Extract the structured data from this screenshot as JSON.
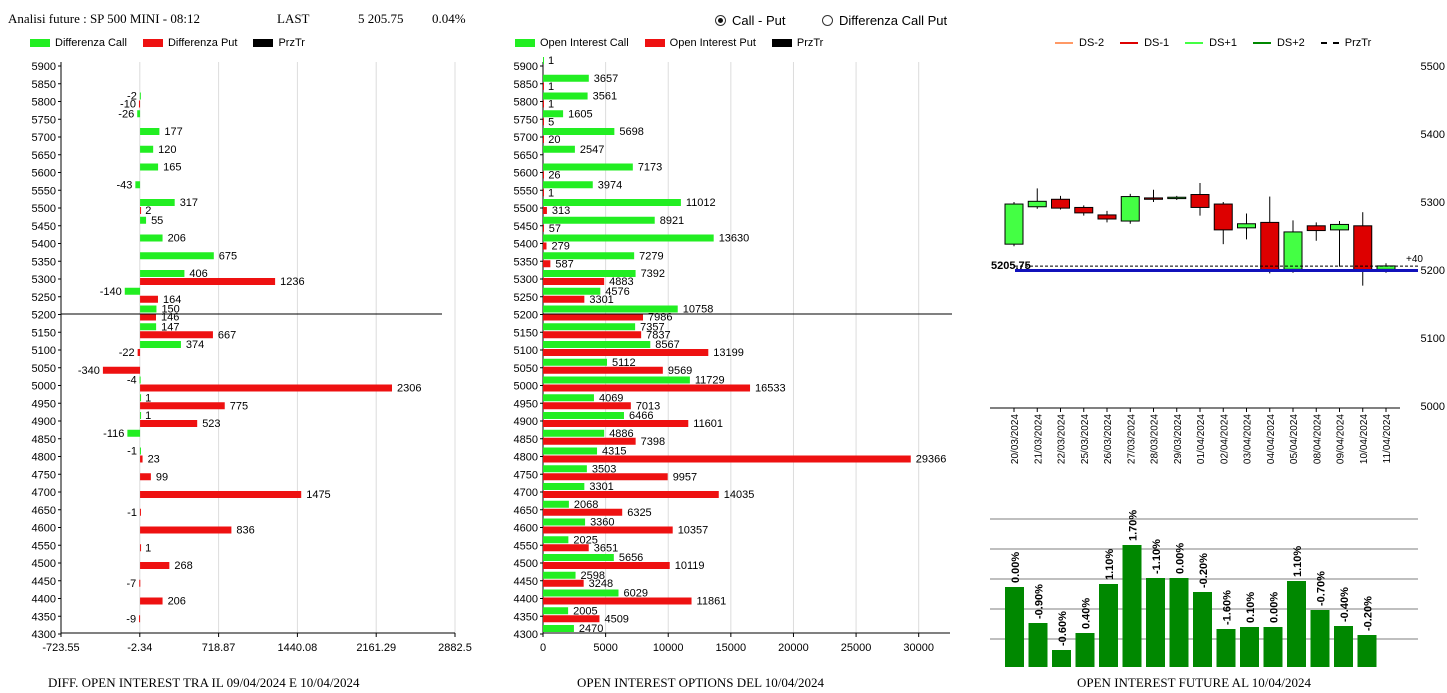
{
  "header": {
    "title": "Analisi future : SP 500 MINI - 08:12",
    "last_label": "LAST",
    "last_value": "5 205.75",
    "change": "0.04%"
  },
  "radio": {
    "options": [
      {
        "label": "Call - Put",
        "selected": true
      },
      {
        "label": "Differenza Call Put",
        "selected": false
      }
    ]
  },
  "colors": {
    "call": "#22ee22",
    "put": "#ee1111",
    "prztr": "#000000",
    "ds_minus2": "#ff9966",
    "ds_minus1": "#dd0000",
    "ds_plus1": "#44ff44",
    "ds_plus2": "#008800",
    "blue_line": "#1111bb",
    "oi_bar": "#008800"
  },
  "left_panel": {
    "legend": [
      "Differenza Call",
      "Differenza Put",
      "PrzTr"
    ],
    "footer": "DIFF. OPEN INTEREST TRA IL 09/04/2024 E 10/04/2024",
    "chart_data": {
      "type": "bar",
      "strikes": [
        5900,
        5850,
        5800,
        5750,
        5700,
        5650,
        5600,
        5550,
        5500,
        5450,
        5400,
        5350,
        5300,
        5250,
        5200,
        5150,
        5100,
        5050,
        5000,
        4950,
        4900,
        4850,
        4800,
        4750,
        4700,
        4650,
        4600,
        4550,
        4500,
        4450,
        4400,
        4350,
        4300
      ],
      "call_diff": [
        null,
        null,
        -2,
        -26,
        177,
        120,
        165,
        -43,
        317,
        55,
        206,
        675,
        406,
        -140,
        150,
        147,
        374,
        null,
        -4,
        1,
        1,
        -116,
        -1,
        null,
        null,
        null,
        null,
        null,
        null,
        null,
        null,
        null,
        null
      ],
      "put_diff": [
        null,
        null,
        -10,
        null,
        null,
        null,
        null,
        null,
        2,
        null,
        null,
        null,
        1236,
        164,
        146,
        667,
        -22,
        -340,
        2306,
        775,
        523,
        null,
        23,
        99,
        1475,
        -1,
        836,
        1,
        268,
        -7,
        206,
        -9,
        null
      ],
      "x_ticks": [
        "-723.55",
        "-2.34",
        "718.87",
        "1440.08",
        "2161.29",
        "2882.5"
      ],
      "xlim": [
        -723.55,
        2882.5
      ],
      "prztr_strike": 5200
    }
  },
  "middle_panel": {
    "legend": [
      "Open Interest Call",
      "Open Interest Put",
      "PrzTr"
    ],
    "footer": "OPEN INTEREST OPTIONS DEL 10/04/2024",
    "chart_data": {
      "type": "bar",
      "strikes": [
        5900,
        5850,
        5800,
        5750,
        5700,
        5650,
        5600,
        5550,
        5500,
        5450,
        5400,
        5350,
        5300,
        5250,
        5200,
        5150,
        5100,
        5050,
        5000,
        4950,
        4900,
        4850,
        4800,
        4750,
        4700,
        4650,
        4600,
        4550,
        4500,
        4450,
        4400,
        4350,
        4300
      ],
      "call_oi": [
        1,
        3657,
        3561,
        1605,
        5698,
        2547,
        7173,
        3974,
        11012,
        8921,
        13630,
        7279,
        7392,
        4576,
        10758,
        7357,
        8567,
        5112,
        11729,
        4069,
        6466,
        4886,
        4315,
        3503,
        3301,
        2068,
        3360,
        2025,
        5656,
        2598,
        6029,
        2005,
        2470
      ],
      "put_oi": [
        null,
        1,
        1,
        5,
        20,
        null,
        26,
        1,
        313,
        57,
        279,
        587,
        4883,
        3301,
        7986,
        7837,
        13199,
        9569,
        16533,
        7013,
        11601,
        7398,
        29366,
        9957,
        14035,
        6325,
        10357,
        3651,
        10119,
        3248,
        11861,
        4509,
        null
      ],
      "x_ticks": [
        "0",
        "5000",
        "10000",
        "15000",
        "20000",
        "25000",
        "30000"
      ],
      "xlim": [
        0,
        32500
      ],
      "prztr_strike": 5200
    }
  },
  "right_panel": {
    "legend": [
      "DS-2",
      "DS-1",
      "DS+1",
      "DS+2",
      "PrzTr"
    ],
    "price_label": "5205.75",
    "delta_label": "+40",
    "chart_data": {
      "type": "candlestick",
      "y_ticks": [
        "5500",
        "5400",
        "5300",
        "5200",
        "5100",
        "5000"
      ],
      "ylim": [
        5000,
        5500
      ],
      "dates": [
        "20/03/2024",
        "21/03/2024",
        "22/03/2024",
        "25/03/2024",
        "26/03/2024",
        "27/03/2024",
        "28/03/2024",
        "29/03/2024",
        "01/04/2024",
        "02/04/2024",
        "03/04/2024",
        "04/04/2024",
        "05/04/2024",
        "08/04/2024",
        "09/04/2024",
        "10/04/2024",
        "11/04/2024"
      ],
      "candles": [
        {
          "o": 5238,
          "h": 5300,
          "l": 5235,
          "c": 5297,
          "up": true
        },
        {
          "o": 5293,
          "h": 5320,
          "l": 5290,
          "c": 5301,
          "up": true
        },
        {
          "o": 5304,
          "h": 5309,
          "l": 5289,
          "c": 5291,
          "up": false
        },
        {
          "o": 5292,
          "h": 5295,
          "l": 5280,
          "c": 5284,
          "up": false
        },
        {
          "o": 5281,
          "h": 5287,
          "l": 5270,
          "c": 5275,
          "up": false
        },
        {
          "o": 5272,
          "h": 5312,
          "l": 5268,
          "c": 5308,
          "up": true
        },
        {
          "o": 5306,
          "h": 5318,
          "l": 5300,
          "c": 5304,
          "up": false
        },
        {
          "o": 5305,
          "h": 5309,
          "l": 5303,
          "c": 5307,
          "up": true
        },
        {
          "o": 5311,
          "h": 5328,
          "l": 5280,
          "c": 5292,
          "up": false
        },
        {
          "o": 5297,
          "h": 5300,
          "l": 5238,
          "c": 5259,
          "up": false
        },
        {
          "o": 5262,
          "h": 5283,
          "l": 5245,
          "c": 5268,
          "up": true
        },
        {
          "o": 5270,
          "h": 5308,
          "l": 5195,
          "c": 5199,
          "up": false
        },
        {
          "o": 5201,
          "h": 5273,
          "l": 5196,
          "c": 5256,
          "up": true
        },
        {
          "o": 5265,
          "h": 5270,
          "l": 5243,
          "c": 5258,
          "up": false
        },
        {
          "o": 5259,
          "h": 5272,
          "l": 5205,
          "c": 5267,
          "up": true
        },
        {
          "o": 5265,
          "h": 5285,
          "l": 5177,
          "c": 5200,
          "up": false
        },
        {
          "o": 5201,
          "h": 5210,
          "l": 5196,
          "c": 5206,
          "up": true
        }
      ],
      "current_price": 5205.75,
      "support_level": 5200
    }
  },
  "oi_future": {
    "footer": "OPEN INTEREST FUTURE AL 10/04/2024",
    "chart_data": {
      "type": "bar",
      "labels": [
        "0.00%",
        "-0.90%",
        "-0.60%",
        "0.40%",
        "1.10%",
        "1.70%",
        "-1.10%",
        "0.00%",
        "-0.20%",
        "-1.60%",
        "0.10%",
        "0.00%",
        "1.10%",
        "-0.70%",
        "-0.40%",
        "-0.20%"
      ],
      "values": [
        0.8,
        0.44,
        0.17,
        0.34,
        0.83,
        1.22,
        0.89,
        0.89,
        0.75,
        0.38,
        0.4,
        0.4,
        0.86,
        0.57,
        0.41,
        0.32
      ]
    }
  }
}
